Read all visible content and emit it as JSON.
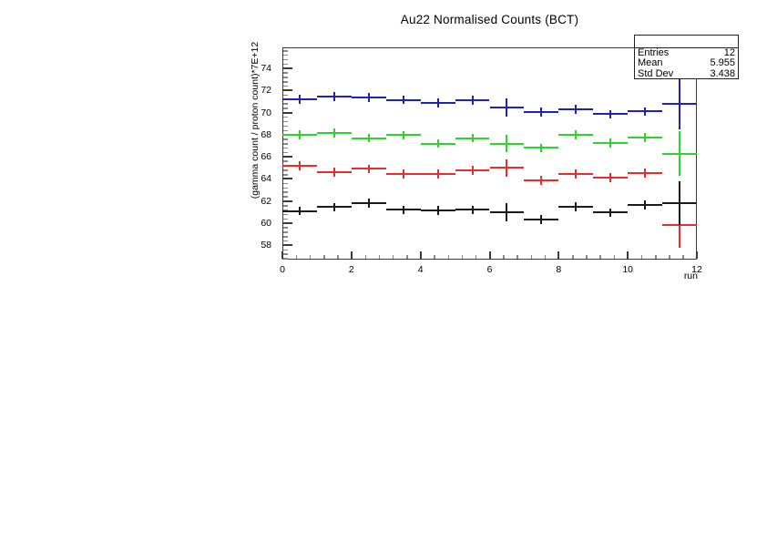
{
  "title": "Au22 Normalised Counts (BCT)",
  "axes": {
    "x_title": "run",
    "y_title": "(gamma count / proton count)*7E+12"
  },
  "stats": {
    "header": "",
    "rows": [
      {
        "label": "Entries",
        "value": "12"
      },
      {
        "label": "Mean",
        "value": "5.955"
      },
      {
        "label": "Std Dev",
        "value": "3.438"
      }
    ]
  },
  "chart_data": {
    "type": "scatter",
    "title": "Au22 Normalised Counts (BCT)",
    "xlabel": "run",
    "ylabel": "(gamma count / proton count)*7E+12",
    "xlim": [
      0,
      12
    ],
    "ylim": [
      56.7,
      75.9
    ],
    "x_major_ticks": [
      0,
      2,
      4,
      6,
      8,
      10,
      12
    ],
    "y_major_ticks": [
      58,
      60,
      62,
      64,
      66,
      68,
      70,
      72,
      74
    ],
    "minor_tick_step": 0.4,
    "grid": false,
    "legend_position": "none",
    "bin_width": 1,
    "x": [
      0.5,
      1.5,
      2.5,
      3.5,
      4.5,
      5.5,
      6.5,
      7.5,
      8.5,
      9.5,
      10.5,
      11.5
    ],
    "series": [
      {
        "name": "series-blue",
        "color": "#2121b5",
        "values": [
          71.2,
          71.45,
          71.35,
          71.15,
          70.85,
          71.1,
          70.45,
          70.05,
          70.3,
          69.85,
          70.1,
          70.8
        ],
        "errors": [
          0.4,
          0.4,
          0.4,
          0.4,
          0.4,
          0.4,
          0.8,
          0.4,
          0.4,
          0.4,
          0.4,
          2.3
        ]
      },
      {
        "name": "series-green",
        "color": "#2cd42c",
        "values": [
          68.0,
          68.15,
          67.7,
          67.95,
          67.2,
          67.7,
          67.2,
          66.8,
          68.0,
          67.25,
          67.75,
          66.3
        ],
        "errors": [
          0.4,
          0.4,
          0.4,
          0.4,
          0.4,
          0.4,
          0.8,
          0.4,
          0.4,
          0.4,
          0.4,
          2.05
        ]
      },
      {
        "name": "series-red",
        "color": "#e62e2e",
        "values": [
          65.2,
          64.6,
          64.9,
          64.45,
          64.45,
          64.8,
          65.0,
          63.85,
          64.45,
          64.1,
          64.55,
          59.85
        ],
        "errors": [
          0.4,
          0.4,
          0.4,
          0.4,
          0.4,
          0.4,
          0.8,
          0.4,
          0.4,
          0.4,
          0.4,
          2.05
        ]
      },
      {
        "name": "series-black",
        "color": "#1a1a1a",
        "values": [
          61.1,
          61.45,
          61.8,
          61.2,
          61.15,
          61.2,
          61.0,
          60.3,
          61.5,
          60.95,
          61.65,
          61.8
        ],
        "errors": [
          0.4,
          0.4,
          0.4,
          0.4,
          0.4,
          0.4,
          0.8,
          0.4,
          0.4,
          0.4,
          0.4,
          2.0
        ]
      }
    ],
    "stats_box": {
      "entries": 12,
      "mean": 5.955,
      "std_dev": 3.438
    }
  }
}
